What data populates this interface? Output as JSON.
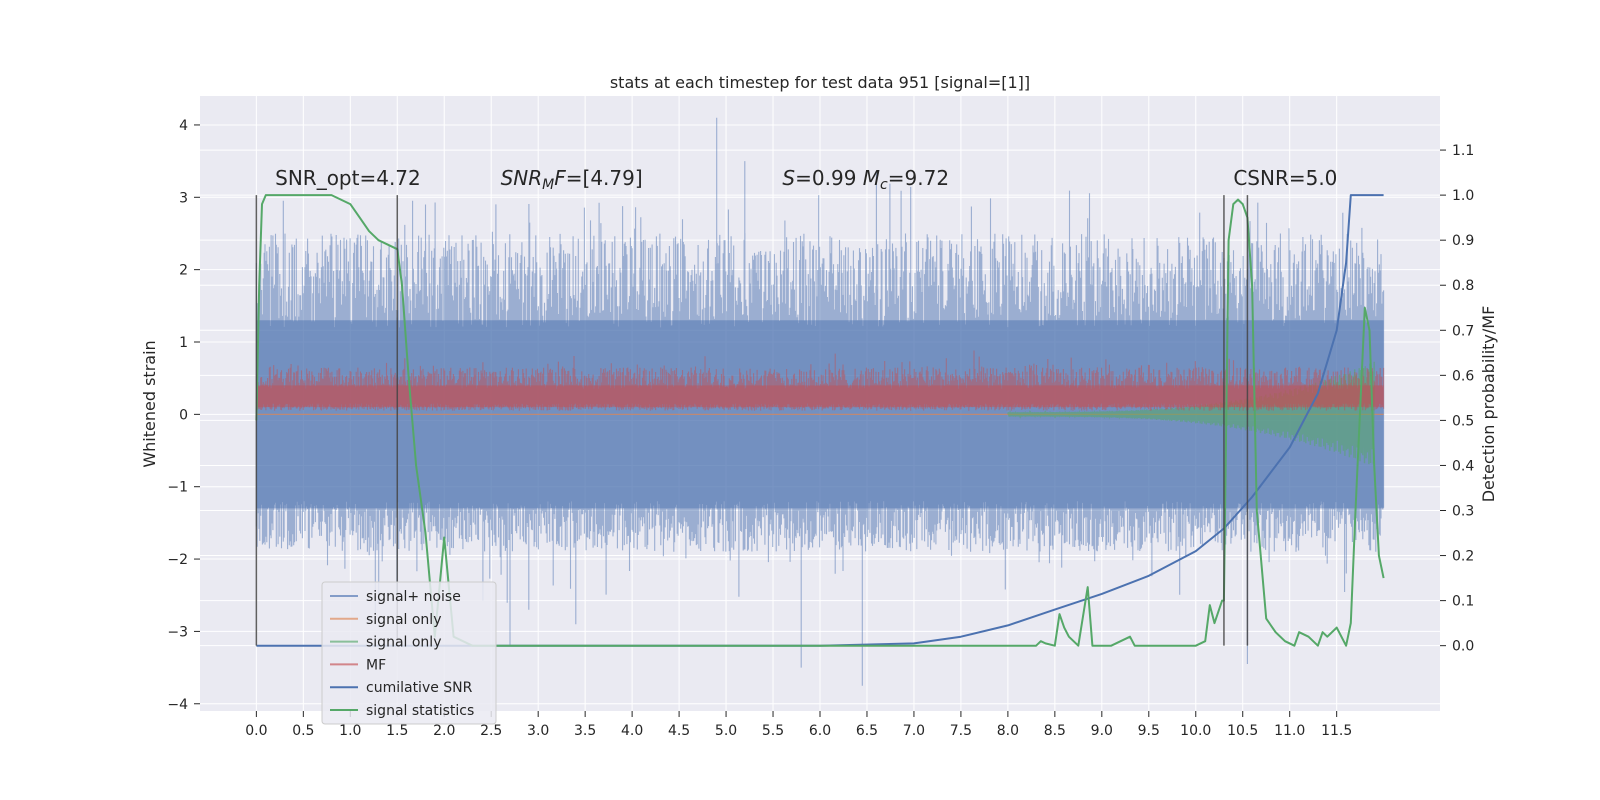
{
  "chart_data": {
    "type": "line",
    "title": "stats at each timestep for test data 951 [signal=[1]]",
    "xlabel": "",
    "ylabel": "Whitened strain",
    "y2label": "Detection probability/MF",
    "xlim": [
      -0.6,
      12.6
    ],
    "ylim": [
      -4.1,
      4.4
    ],
    "y2lim": [
      -0.145,
      1.22
    ],
    "x_ticks": [
      "0.0",
      "0.5",
      "1.0",
      "1.5",
      "2.0",
      "2.5",
      "3.0",
      "3.5",
      "4.0",
      "4.5",
      "5.0",
      "5.5",
      "6.0",
      "6.5",
      "7.0",
      "7.5",
      "8.0",
      "8.5",
      "9.0",
      "9.5",
      "10.0",
      "10.5",
      "11.0",
      "11.5"
    ],
    "y_ticks": [
      "4",
      "3",
      "2",
      "1",
      "0",
      "−1",
      "−2",
      "−3",
      "−4"
    ],
    "y2_ticks": [
      "1.1",
      "1.0",
      "0.9",
      "0.8",
      "0.7",
      "0.6",
      "0.5",
      "0.4",
      "0.3",
      "0.2",
      "0.1",
      "0.0"
    ],
    "grid": true,
    "legend_position": "lower-left",
    "annotations": [
      {
        "text": "SNR_opt=4.72",
        "x": 0.2
      },
      {
        "text": "SNR",
        "sub": "M",
        "rest": "F=[4.79]",
        "x": 2.6,
        "italic": true
      },
      {
        "text": "S=0.99   ",
        "rest2": "M",
        "sub": "c",
        "rest": "=9.72",
        "x": 5.6,
        "italic": true
      },
      {
        "text": "CSNR=5.0",
        "x": 10.4
      }
    ],
    "vertical_lines_x": [
      0.0,
      1.5,
      10.3,
      10.55
    ],
    "series": [
      {
        "name": "signal+ noise",
        "color": "#4c72b0",
        "alpha": 0.5,
        "kind": "noise",
        "x_range": [
          0.0,
          12.0
        ],
        "typical_range": [
          -1.8,
          2.4
        ],
        "spikes": [
          [
            4.9,
            4.1
          ],
          [
            5.2,
            3.5
          ],
          [
            6.6,
            3.35
          ],
          [
            1.8,
            2.9
          ],
          [
            2.7,
            -3.2
          ],
          [
            5.8,
            -3.5
          ],
          [
            6.45,
            -3.75
          ],
          [
            10.55,
            -3.45
          ],
          [
            2.9,
            -2.7
          ],
          [
            3.4,
            -2.9
          ]
        ]
      },
      {
        "name": "signal only",
        "color": "#dd8452",
        "alpha": 0.5,
        "kind": "flat",
        "value": 0.0
      },
      {
        "name": "signal only",
        "color": "#55a868",
        "alpha": 0.5,
        "kind": "chirp",
        "x_range": [
          8.0,
          11.9
        ],
        "amplitude_end": 0.7
      },
      {
        "name": "MF",
        "color": "#c44e52",
        "alpha": 0.5,
        "kind": "band",
        "x_range": [
          0.0,
          12.0
        ],
        "band": [
          0.07,
          0.8
        ]
      },
      {
        "name": "cumilative SNR",
        "color": "#4c72b0",
        "axis": "y2",
        "x": [
          0.0,
          6.0,
          7.0,
          7.5,
          8.0,
          8.5,
          9.0,
          9.5,
          10.0,
          10.3,
          10.6,
          11.0,
          11.3,
          11.5,
          11.6,
          11.65,
          11.7,
          12.0
        ],
        "y": [
          0.0,
          0.0,
          0.005,
          0.02,
          0.045,
          0.08,
          0.115,
          0.155,
          0.21,
          0.26,
          0.33,
          0.44,
          0.56,
          0.7,
          0.85,
          1.0,
          1.0,
          1.0
        ]
      },
      {
        "name": "signal statistics",
        "color": "#55a868",
        "axis": "y2",
        "x": [
          0.0,
          0.03,
          0.06,
          0.1,
          0.2,
          0.5,
          0.8,
          0.9,
          1.0,
          1.1,
          1.2,
          1.3,
          1.4,
          1.5,
          1.55,
          1.62,
          1.7,
          1.8,
          1.9,
          2.0,
          2.1,
          2.3,
          6.0,
          8.3,
          8.35,
          8.4,
          8.5,
          8.55,
          8.6,
          8.65,
          8.75,
          8.85,
          8.9,
          8.95,
          9.1,
          9.3,
          9.35,
          9.45,
          9.55,
          9.7,
          10.0,
          10.1,
          10.15,
          10.2,
          10.28,
          10.3,
          10.35,
          10.4,
          10.45,
          10.5,
          10.55,
          10.6,
          10.65,
          10.75,
          10.85,
          10.95,
          11.05,
          11.1,
          11.2,
          11.3,
          11.35,
          11.4,
          11.5,
          11.6,
          11.65,
          11.7,
          11.8,
          11.85,
          11.9,
          11.95,
          12.0
        ],
        "y": [
          0.5,
          0.8,
          0.98,
          1.0,
          1.0,
          1.0,
          1.0,
          0.99,
          0.98,
          0.95,
          0.92,
          0.9,
          0.89,
          0.88,
          0.8,
          0.6,
          0.4,
          0.25,
          0.02,
          0.24,
          0.02,
          0.0,
          0.0,
          0.0,
          0.01,
          0.005,
          0.0,
          0.07,
          0.04,
          0.02,
          0.0,
          0.13,
          0.0,
          0.0,
          0.0,
          0.02,
          0.0,
          0.0,
          0.0,
          0.0,
          0.0,
          0.01,
          0.09,
          0.05,
          0.1,
          0.1,
          0.9,
          0.98,
          0.99,
          0.98,
          0.95,
          0.8,
          0.3,
          0.06,
          0.03,
          0.01,
          0.0,
          0.03,
          0.02,
          0.0,
          0.03,
          0.02,
          0.04,
          0.0,
          0.05,
          0.3,
          0.75,
          0.7,
          0.4,
          0.2,
          0.15
        ]
      }
    ]
  }
}
